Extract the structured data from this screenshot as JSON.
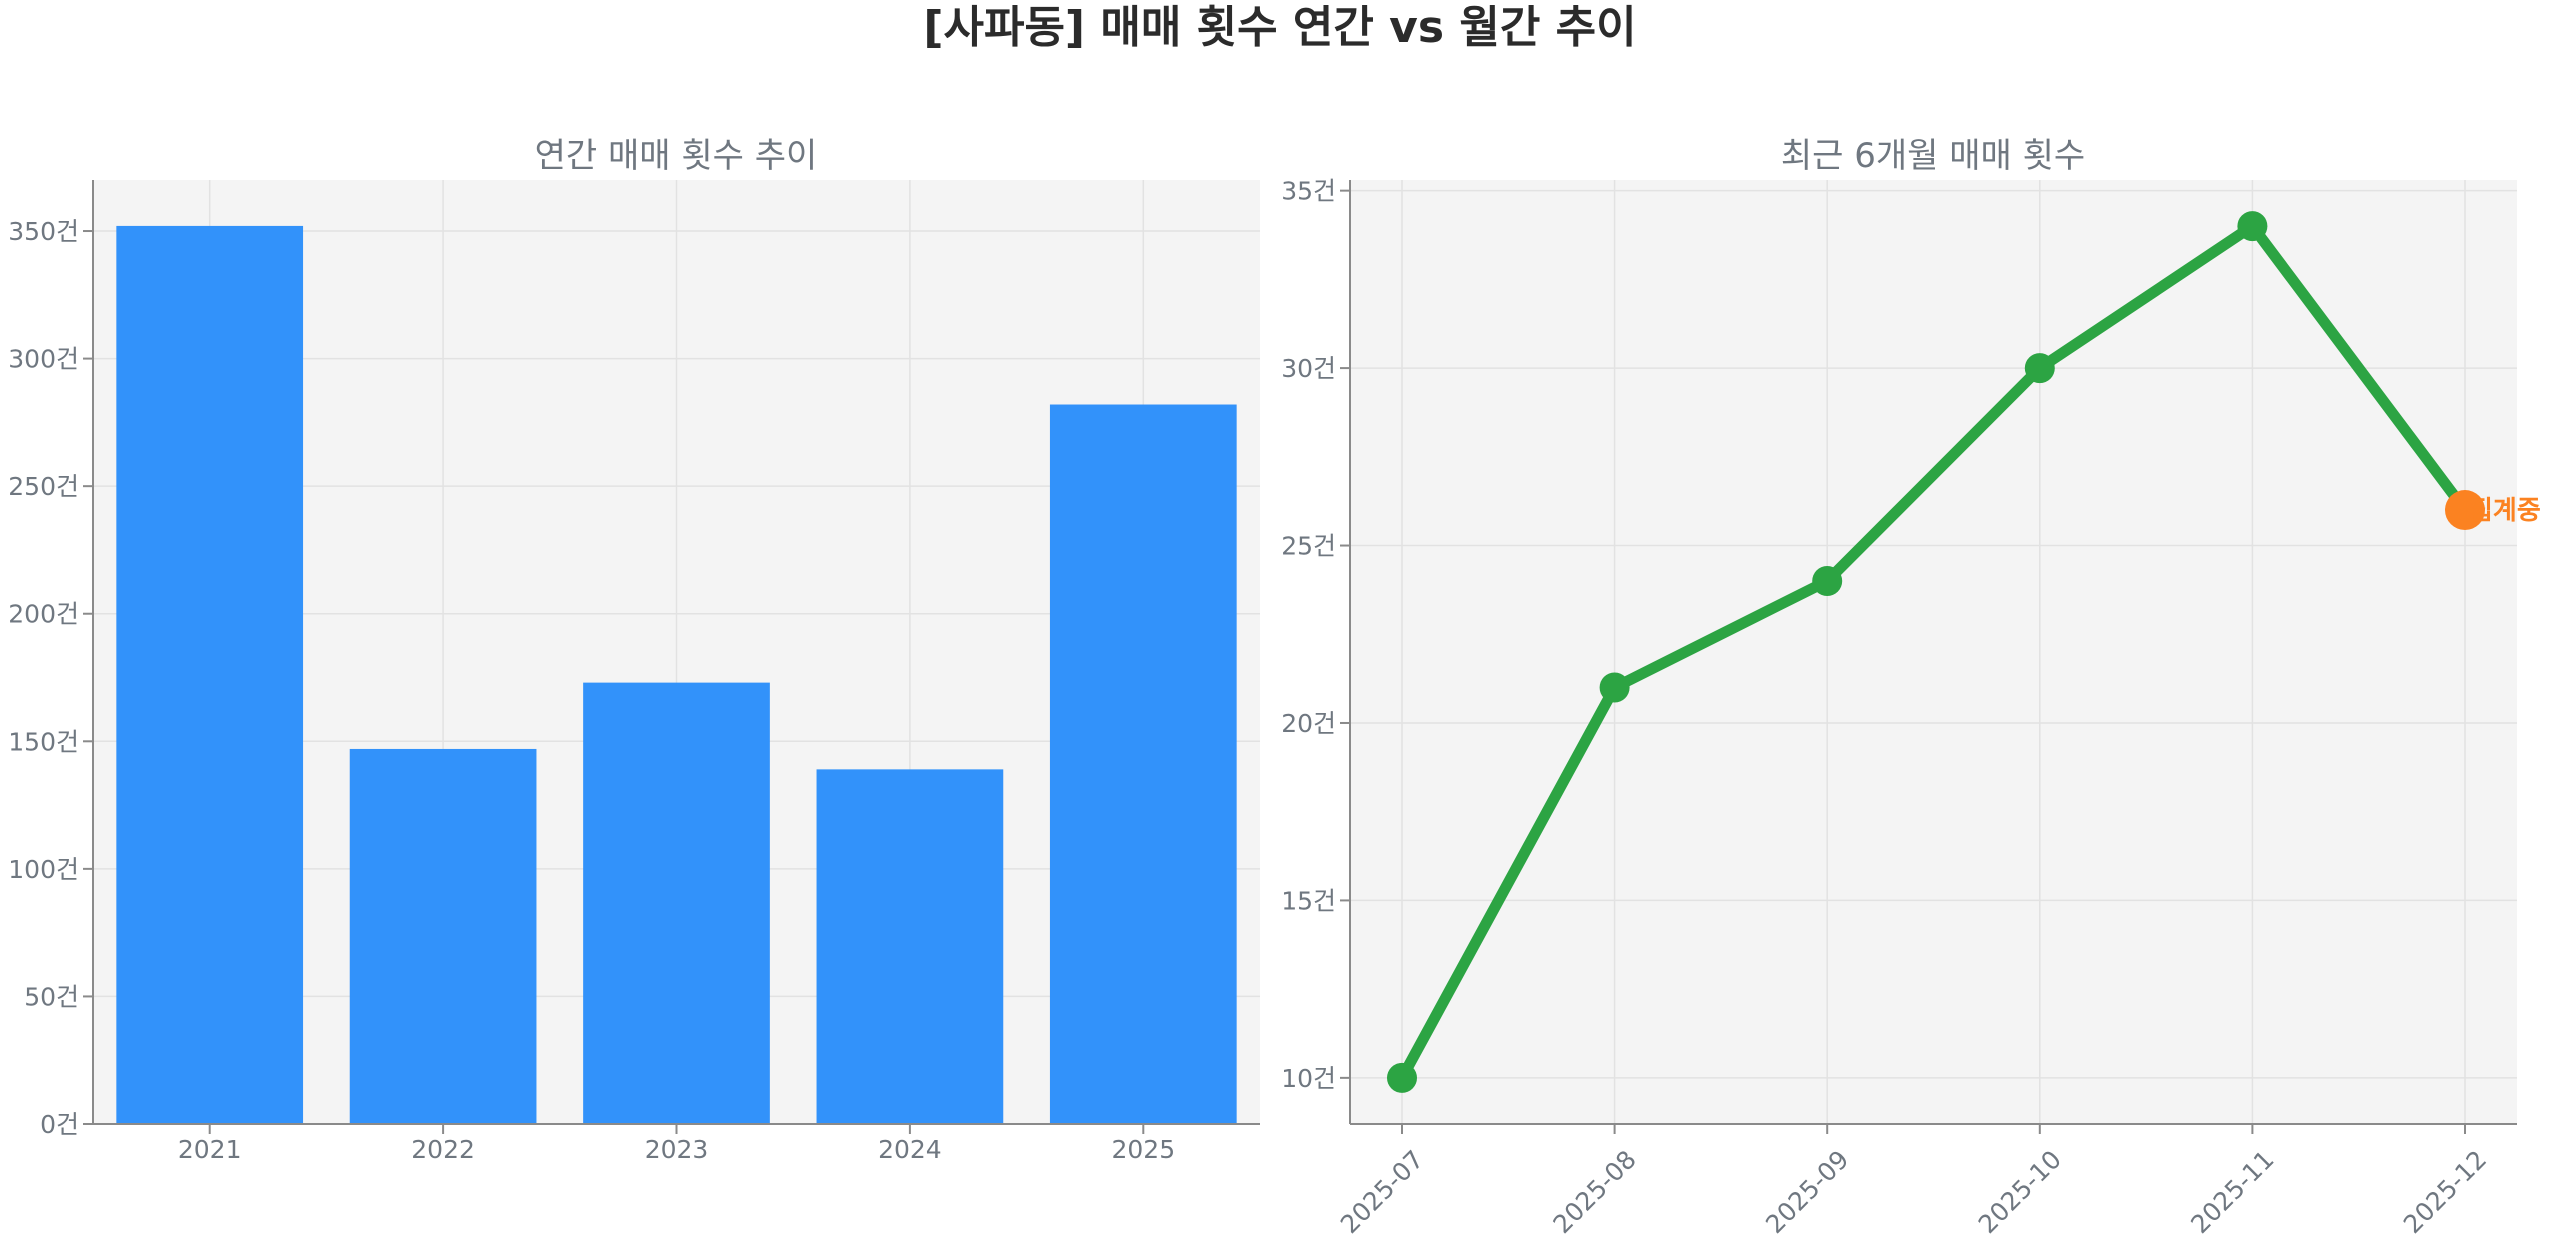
{
  "figure": {
    "title": "[사파동] 매매 횟수 연간 vs 월간 추이"
  },
  "chart_data": [
    {
      "type": "bar",
      "title": "연간 매매 횟수 추이",
      "categories": [
        "2021",
        "2022",
        "2023",
        "2024",
        "2025"
      ],
      "values": [
        352,
        147,
        173,
        139,
        282
      ],
      "ylim": [
        0,
        370
      ],
      "yticks": [
        0,
        50,
        100,
        150,
        200,
        250,
        300,
        350
      ],
      "ytick_labels": [
        "0건",
        "50건",
        "100건",
        "150건",
        "200건",
        "250건",
        "300건",
        "350건"
      ],
      "grid": true,
      "color": "#3292fa"
    },
    {
      "type": "line",
      "title": "최근 6개월 매매 횟수",
      "x": [
        "2025-07",
        "2025-08",
        "2025-09",
        "2025-10",
        "2025-11",
        "2025-12"
      ],
      "values": [
        10,
        21,
        24,
        30,
        34,
        26
      ],
      "ylim": [
        8.7,
        35.3
      ],
      "yticks": [
        10,
        15,
        20,
        25,
        30,
        35
      ],
      "ytick_labels": [
        "10건",
        "15건",
        "20건",
        "25건",
        "30건",
        "35건"
      ],
      "grid": true,
      "color": "#2ca443",
      "highlight": {
        "index": 5,
        "color": "#fb8221",
        "label": "집계중"
      }
    }
  ]
}
